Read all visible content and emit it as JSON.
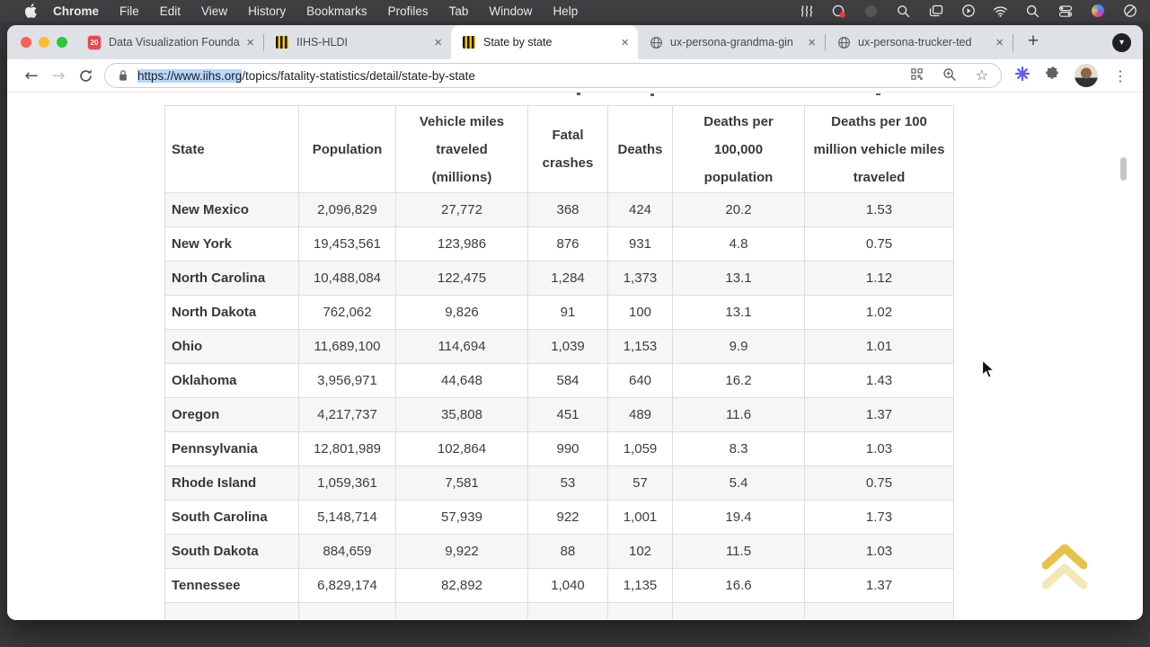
{
  "menu_bar": {
    "apple_logo": "apple-logo-icon",
    "items": [
      "Chrome",
      "File",
      "Edit",
      "View",
      "History",
      "Bookmarks",
      "Profiles",
      "Tab",
      "Window",
      "Help"
    ],
    "status_icons": [
      "waves-icon",
      "screen-record-icon",
      "dimmed-circle-icon",
      "zoom-magnifier-icon",
      "stacked-windows-icon",
      "play-circle-icon",
      "wifi-icon",
      "spotlight-search-icon",
      "control-center-icon",
      "colorful-app-icon",
      "do-not-disturb-icon"
    ]
  },
  "browser": {
    "window_controls": [
      "close",
      "minimize",
      "zoom"
    ],
    "tabs": [
      {
        "label": "Data Visualization Founda",
        "favicon": "course-20-icon",
        "active": false
      },
      {
        "label": "IIHS-HLDI",
        "favicon": "iihs-road-icon",
        "active": false
      },
      {
        "label": "State by state",
        "favicon": "iihs-road-icon",
        "active": true
      },
      {
        "label": "ux-persona-grandma-gin",
        "favicon": "globe-icon",
        "active": false
      },
      {
        "label": "ux-persona-trucker-ted",
        "favicon": "globe-icon",
        "active": false
      }
    ],
    "close_glyph": "×",
    "new_tab_glyph": "+",
    "tab_search_glyph": "▾",
    "toolbar": {
      "back_glyph": "←",
      "forward_glyph": "→",
      "bookmark_star_glyph": "☆",
      "menu_dots_glyph": "⋮",
      "url_selected": "https://www.iihs.org",
      "url_rest": "/topics/fatality-statistics/detail/state-by-state"
    }
  },
  "page": {
    "table": {
      "headers": [
        "State",
        "Population",
        "Vehicle miles traveled (millions)",
        "Fatal crashes",
        "Deaths",
        "Deaths per 100,000 population",
        "Deaths per 100 million vehicle miles traveled"
      ],
      "rows": [
        [
          "New Mexico",
          "2,096,829",
          "27,772",
          "368",
          "424",
          "20.2",
          "1.53"
        ],
        [
          "New York",
          "19,453,561",
          "123,986",
          "876",
          "931",
          "4.8",
          "0.75"
        ],
        [
          "North Carolina",
          "10,488,084",
          "122,475",
          "1,284",
          "1,373",
          "13.1",
          "1.12"
        ],
        [
          "North Dakota",
          "762,062",
          "9,826",
          "91",
          "100",
          "13.1",
          "1.02"
        ],
        [
          "Ohio",
          "11,689,100",
          "114,694",
          "1,039",
          "1,153",
          "9.9",
          "1.01"
        ],
        [
          "Oklahoma",
          "3,956,971",
          "44,648",
          "584",
          "640",
          "16.2",
          "1.43"
        ],
        [
          "Oregon",
          "4,217,737",
          "35,808",
          "451",
          "489",
          "11.6",
          "1.37"
        ],
        [
          "Pennsylvania",
          "12,801,989",
          "102,864",
          "990",
          "1,059",
          "8.3",
          "1.03"
        ],
        [
          "Rhode Island",
          "1,059,361",
          "7,581",
          "53",
          "57",
          "5.4",
          "0.75"
        ],
        [
          "South Carolina",
          "5,148,714",
          "57,939",
          "922",
          "1,001",
          "19.4",
          "1.73"
        ],
        [
          "South Dakota",
          "884,659",
          "9,922",
          "88",
          "102",
          "11.5",
          "1.03"
        ],
        [
          "Tennessee",
          "6,829,174",
          "82,892",
          "1,040",
          "1,135",
          "16.6",
          "1.37"
        ]
      ]
    },
    "back_to_top_icon": "double-chevron-up-icon"
  },
  "colors": {
    "selection_highlight": "#b7d7fb",
    "row_stripe": "#f6f6f7",
    "table_border": "#dddddd",
    "tab_strip": "#dee1e6",
    "chevron_gold": "#e7c24a",
    "chevron_gold_light": "#f4e7b6",
    "extension_accent": "#615ef0"
  }
}
